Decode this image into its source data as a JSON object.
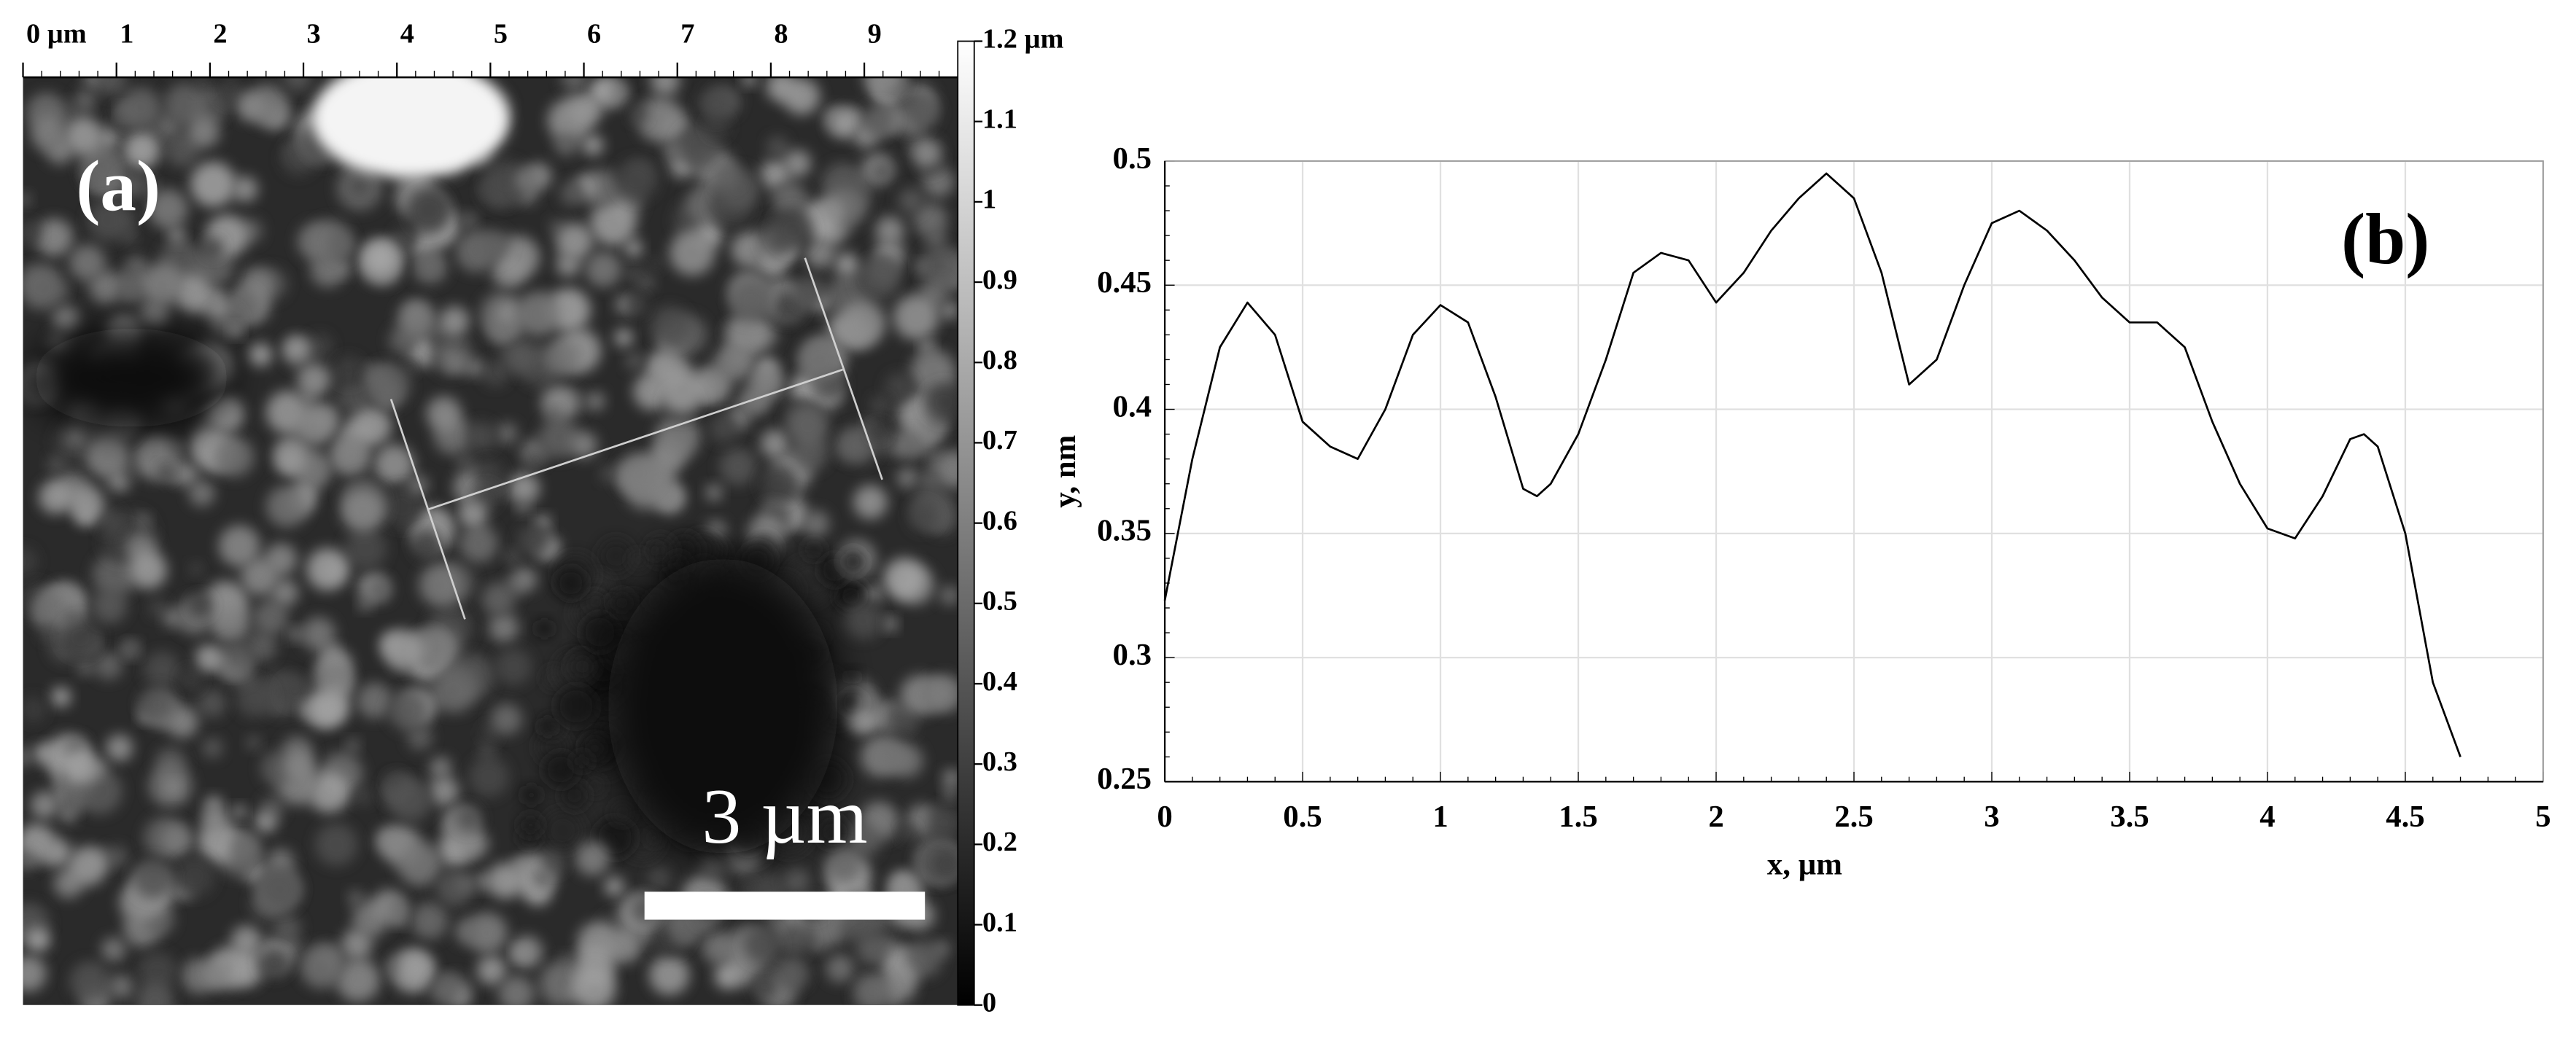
{
  "chart_data": [
    {
      "type": "image",
      "label": "(a)",
      "xlim": [
        0,
        10
      ],
      "xticks": [
        {
          "value": 0,
          "label": "0 µm"
        },
        1,
        2,
        3,
        4,
        5,
        6,
        7,
        8,
        9
      ],
      "colorbar": {
        "ylim": [
          0,
          1.2
        ],
        "yticks": [
          0,
          0.1,
          0.2,
          0.3,
          0.4,
          0.5,
          0.6,
          0.7,
          0.8,
          0.9,
          1,
          1.1,
          {
            "value": 1.2,
            "label": "1.2 µm"
          }
        ]
      },
      "scale_bar": {
        "length": 3,
        "label": "3 µm"
      }
    },
    {
      "type": "line",
      "label": "(b)",
      "x_label": "x, µm",
      "y_label": "y, nm",
      "x": [
        0,
        0.1,
        0.2,
        0.3,
        0.4,
        0.5,
        0.6,
        0.7,
        0.8,
        0.9,
        1.0,
        1.1,
        1.2,
        1.3,
        1.35,
        1.4,
        1.5,
        1.6,
        1.7,
        1.8,
        1.9,
        2.0,
        2.1,
        2.2,
        2.3,
        2.4,
        2.5,
        2.6,
        2.7,
        2.8,
        2.9,
        3.0,
        3.1,
        3.2,
        3.3,
        3.4,
        3.5,
        3.6,
        3.7,
        3.8,
        3.9,
        4.0,
        4.1,
        4.2,
        4.3,
        4.35,
        4.4,
        4.5,
        4.6,
        4.7
      ],
      "values": [
        0.323,
        0.38,
        0.425,
        0.443,
        0.43,
        0.395,
        0.385,
        0.38,
        0.4,
        0.43,
        0.442,
        0.435,
        0.405,
        0.368,
        0.365,
        0.37,
        0.39,
        0.42,
        0.455,
        0.463,
        0.46,
        0.443,
        0.455,
        0.472,
        0.485,
        0.495,
        0.485,
        0.455,
        0.41,
        0.42,
        0.45,
        0.475,
        0.48,
        0.472,
        0.46,
        0.445,
        0.435,
        0.435,
        0.425,
        0.395,
        0.37,
        0.352,
        0.348,
        0.365,
        0.388,
        0.39,
        0.385,
        0.35,
        0.29,
        0.26
      ],
      "color": "#000000",
      "xlim": [
        0,
        5
      ],
      "xticks": [
        0,
        0.5,
        1,
        1.5,
        2,
        2.5,
        3,
        3.5,
        4,
        4.5,
        5
      ],
      "ylim": [
        0.25,
        0.5
      ],
      "yticks": [
        0.25,
        0.3,
        0.35,
        0.4,
        0.45,
        0.5
      ],
      "grid": true
    }
  ]
}
